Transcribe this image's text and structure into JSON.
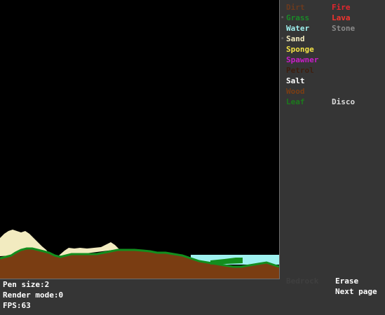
{
  "elements_col1": [
    {
      "label": "Dirt",
      "color": "#6b3a1e"
    },
    {
      "label": "Grass",
      "color": "#1a8a28"
    },
    {
      "label": "Water",
      "color": "#9ff0ee"
    },
    {
      "label": "Sand",
      "color": "#f4ecbf"
    },
    {
      "label": "Sponge",
      "color": "#f3e246"
    },
    {
      "label": "Spawner",
      "color": "#c91ec9"
    },
    {
      "label": "Petrol",
      "color": "#3e1f10"
    },
    {
      "label": "Salt",
      "color": "#ffffff"
    },
    {
      "label": "Wood",
      "color": "#7a3d13"
    },
    {
      "label": "Leaf",
      "color": "#1c7a1c"
    }
  ],
  "elements_col2": [
    {
      "label": "Fire",
      "color": "#e3262d"
    },
    {
      "label": "Lava",
      "color": "#f4342e"
    },
    {
      "label": "Stone",
      "color": "#8a8a8a"
    },
    {
      "label": "Disco",
      "color": "#dcdcdc",
      "row": 9
    }
  ],
  "bottom": {
    "bedrock": {
      "label": "Bedrock",
      "color": "#3f3f3f"
    },
    "erase": {
      "label": "Erase",
      "color": "#ffffff"
    },
    "next_page": {
      "label": "Next page",
      "color": "#ffffff"
    }
  },
  "status": {
    "pen_size": "Pen size:2",
    "render_mode": "Render mode:0",
    "fps": "FPS:63"
  },
  "palette": {
    "sand": "#f2ebc0",
    "dirt": "#7a3d12",
    "grass": "#138e1e",
    "water": "#9ff2f0"
  }
}
